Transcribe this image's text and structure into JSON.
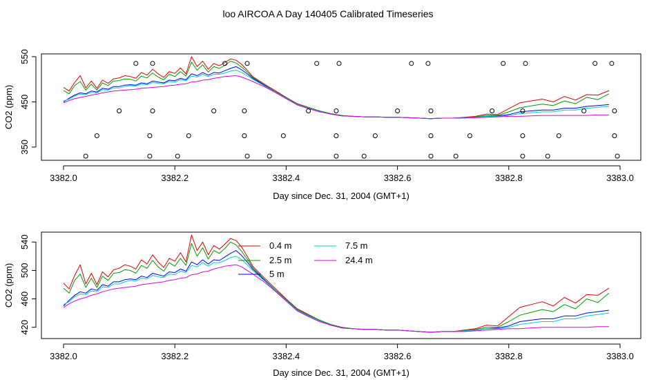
{
  "figure_title": "loo AIRCOA A  Day 140405  Calibrated Timeseries",
  "chart_data": [
    {
      "type": "line",
      "xlabel": "Day since Dec. 31, 2004 (GMT+1)",
      "ylabel": "CO2 (ppm)",
      "xlim": [
        3382.0,
        3383.0
      ],
      "ylim": [
        420,
        550
      ],
      "x_ticks": [
        "3382.0",
        "3382.2",
        "3382.4",
        "3382.6",
        "3382.8",
        "3383.0"
      ],
      "y_ticks": [
        "350",
        "450",
        "550"
      ],
      "grid": false,
      "legend": null,
      "calibration_points": {
        "x": [
          3382.04,
          3382.06,
          3382.1,
          3382.13,
          3382.155,
          3382.155,
          3382.16,
          3382.16,
          3382.205,
          3382.225,
          3382.27,
          3382.29,
          3382.325,
          3382.325,
          3382.33,
          3382.33,
          3382.37,
          3382.395,
          3382.44,
          3382.455,
          3382.49,
          3382.49,
          3382.49,
          3382.495,
          3382.54,
          3382.56,
          3382.6,
          3382.625,
          3382.655,
          3382.66,
          3382.66,
          3382.66,
          3382.705,
          3382.73,
          3382.77,
          3382.79,
          3382.825,
          3382.825,
          3382.825,
          3382.83,
          3382.87,
          3382.89,
          3382.935,
          3382.955,
          3382.985,
          3382.99,
          3382.99,
          3382.995
        ],
        "y": [
          330,
          375,
          430,
          535,
          330,
          375,
          430,
          535,
          330,
          375,
          430,
          535,
          375,
          430,
          330,
          535,
          330,
          375,
          430,
          535,
          330,
          375,
          430,
          535,
          330,
          375,
          430,
          535,
          535,
          430,
          375,
          330,
          330,
          375,
          430,
          535,
          330,
          375,
          430,
          535,
          330,
          375,
          430,
          535,
          535,
          430,
          375,
          330
        ]
      }
    },
    {
      "type": "line",
      "xlabel": "Day since Dec. 31, 2004 (GMT+1)",
      "ylabel": "CO2 (ppm)",
      "xlim": [
        3382.0,
        3383.0
      ],
      "ylim": [
        410,
        550
      ],
      "x_ticks": [
        "3382.0",
        "3382.2",
        "3382.4",
        "3382.6",
        "3382.8",
        "3383.0"
      ],
      "y_ticks": [
        "420",
        "460",
        "500",
        "540"
      ],
      "grid": false,
      "legend": "top-center",
      "legend_entries": [
        {
          "label": "0.4 m",
          "color": "#dd0000"
        },
        {
          "label": "2.5 m",
          "color": "#009900"
        },
        {
          "label": "5 m",
          "color": "#0000ee"
        },
        {
          "label": "7.5 m",
          "color": "#00cccc"
        },
        {
          "label": "24.4 m",
          "color": "#dd00dd"
        }
      ]
    }
  ],
  "series_template": {
    "x": [
      3382.0,
      3382.01,
      3382.02,
      3382.03,
      3382.04,
      3382.05,
      3382.06,
      3382.07,
      3382.08,
      3382.09,
      3382.1,
      3382.11,
      3382.12,
      3382.13,
      3382.14,
      3382.15,
      3382.16,
      3382.17,
      3382.18,
      3382.19,
      3382.2,
      3382.21,
      3382.22,
      3382.23,
      3382.24,
      3382.25,
      3382.26,
      3382.27,
      3382.28,
      3382.29,
      3382.3,
      3382.31,
      3382.32,
      3382.33,
      3382.34,
      3382.36,
      3382.38,
      3382.4,
      3382.42,
      3382.44,
      3382.46,
      3382.48,
      3382.5,
      3382.52,
      3382.54,
      3382.56,
      3382.58,
      3382.6,
      3382.62,
      3382.64,
      3382.66,
      3382.68,
      3382.7,
      3382.72,
      3382.74,
      3382.76,
      3382.78,
      3382.8,
      3382.82,
      3382.84,
      3382.86,
      3382.88,
      3382.9,
      3382.92,
      3382.94,
      3382.96,
      3382.98
    ],
    "series": [
      {
        "name": "0.4 m",
        "color": "#dd0000",
        "values": [
          482,
          474,
          493,
          508,
          481,
          496,
          480,
          498,
          491,
          501,
          503,
          508,
          506,
          502,
          515,
          509,
          522,
          512,
          504,
          517,
          513,
          525,
          512,
          550,
          528,
          540,
          522,
          535,
          530,
          537,
          545,
          542,
          533,
          520,
          506,
          490,
          475,
          460,
          446,
          438,
          430,
          424,
          420,
          418,
          417,
          417,
          416,
          416,
          415,
          414,
          413,
          414,
          414,
          416,
          418,
          423,
          422,
          435,
          448,
          452,
          456,
          450,
          462,
          454,
          466,
          465,
          475
        ]
      },
      {
        "name": "2.5 m",
        "color": "#009900",
        "values": [
          475,
          468,
          486,
          495,
          476,
          489,
          476,
          492,
          486,
          496,
          497,
          501,
          500,
          496,
          507,
          503,
          514,
          505,
          499,
          511,
          506,
          517,
          507,
          538,
          520,
          532,
          516,
          528,
          524,
          531,
          540,
          536,
          527,
          516,
          504,
          488,
          473,
          459,
          445,
          437,
          430,
          424,
          420,
          418,
          417,
          417,
          416,
          416,
          415,
          414,
          413,
          414,
          414,
          415,
          417,
          420,
          420,
          428,
          437,
          441,
          445,
          442,
          452,
          446,
          460,
          455,
          468
        ]
      },
      {
        "name": "5 m",
        "color": "#0000ee",
        "values": [
          450,
          458,
          465,
          470,
          468,
          474,
          472,
          480,
          478,
          484,
          484,
          487,
          488,
          487,
          492,
          490,
          496,
          494,
          492,
          498,
          497,
          502,
          499,
          512,
          508,
          515,
          509,
          515,
          514,
          519,
          524,
          528,
          521,
          512,
          502,
          487,
          472,
          458,
          444,
          436,
          429,
          423,
          419,
          418,
          417,
          417,
          416,
          416,
          415,
          414,
          413,
          414,
          414,
          415,
          416,
          418,
          419,
          422,
          428,
          430,
          432,
          432,
          436,
          436,
          440,
          442,
          444
        ]
      },
      {
        "name": "7.5 m",
        "color": "#00cccc",
        "values": [
          452,
          456,
          463,
          467,
          466,
          471,
          470,
          477,
          476,
          481,
          481,
          484,
          486,
          485,
          489,
          488,
          493,
          491,
          490,
          495,
          494,
          499,
          497,
          507,
          505,
          511,
          506,
          511,
          511,
          514,
          518,
          520,
          515,
          508,
          500,
          486,
          472,
          458,
          444,
          436,
          429,
          423,
          419,
          418,
          417,
          417,
          416,
          416,
          415,
          414,
          413,
          414,
          414,
          415,
          416,
          418,
          418,
          420,
          424,
          426,
          428,
          428,
          432,
          432,
          436,
          438,
          440
        ]
      },
      {
        "name": "24.4 m",
        "color": "#dd00dd",
        "values": [
          448,
          453,
          457,
          460,
          462,
          465,
          467,
          470,
          472,
          474,
          475,
          476,
          477,
          478,
          480,
          481,
          482,
          483,
          484,
          486,
          487,
          489,
          490,
          494,
          495,
          498,
          499,
          502,
          504,
          506,
          507,
          508,
          505,
          500,
          495,
          484,
          471,
          457,
          443,
          435,
          428,
          423,
          419,
          418,
          417,
          417,
          416,
          416,
          415,
          414,
          413,
          414,
          414,
          414,
          415,
          416,
          417,
          418,
          418,
          419,
          420,
          420,
          420,
          420,
          420,
          421,
          421
        ]
      }
    ]
  }
}
